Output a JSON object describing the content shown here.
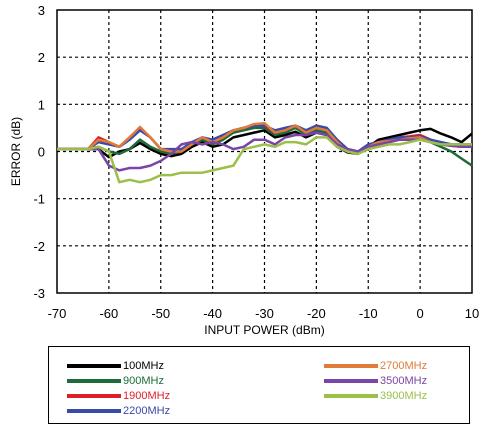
{
  "chart_data": {
    "type": "line",
    "xlabel": "INPUT POWER (dBm)",
    "ylabel": "ERROR (dB)",
    "xlim": [
      -70,
      10
    ],
    "ylim": [
      -3,
      3
    ],
    "xticks": [
      -70,
      -60,
      -50,
      -40,
      -30,
      -20,
      -10,
      0,
      10
    ],
    "yticks": [
      -3,
      -2,
      -1,
      0,
      1,
      2,
      3
    ],
    "grid": true,
    "legend_position": "bottom",
    "series": [
      {
        "name": "100MHz",
        "color": "#000000",
        "x": [
          -70,
          -64,
          -62,
          -60,
          -58,
          -56,
          -54,
          -52,
          -50,
          -48,
          -46,
          -44,
          -42,
          -40,
          -38,
          -36,
          -34,
          -32,
          -30,
          -28,
          -26,
          -24,
          -22,
          -20,
          -18,
          -16,
          -14,
          -12,
          -10,
          -8,
          -6,
          -4,
          -2,
          0,
          2,
          4,
          6,
          8,
          10
        ],
        "y": [
          0.05,
          0.05,
          0.05,
          -0.12,
          0.0,
          0.05,
          0.18,
          0.05,
          -0.05,
          -0.1,
          -0.05,
          0.1,
          0.2,
          0.1,
          0.15,
          0.3,
          0.35,
          0.4,
          0.45,
          0.3,
          0.35,
          0.42,
          0.3,
          0.4,
          0.35,
          0.1,
          -0.02,
          -0.05,
          0.1,
          0.25,
          0.3,
          0.35,
          0.4,
          0.45,
          0.48,
          0.38,
          0.3,
          0.2,
          0.38
        ]
      },
      {
        "name": "900MHz",
        "color": "#1e6b3a",
        "x": [
          -70,
          -64,
          -62,
          -60,
          -58,
          -56,
          -54,
          -52,
          -50,
          -48,
          -46,
          -44,
          -42,
          -40,
          -38,
          -36,
          -34,
          -32,
          -30,
          -28,
          -26,
          -24,
          -22,
          -20,
          -18,
          -16,
          -14,
          -12,
          -10,
          -8,
          -6,
          -4,
          -2,
          0,
          2,
          4,
          6,
          8,
          10
        ],
        "y": [
          0.05,
          0.05,
          0.1,
          0.0,
          -0.05,
          0.05,
          0.25,
          0.1,
          0.0,
          -0.05,
          0.0,
          0.15,
          0.25,
          0.15,
          0.25,
          0.4,
          0.45,
          0.5,
          0.5,
          0.35,
          0.4,
          0.5,
          0.35,
          0.45,
          0.4,
          0.15,
          0.0,
          -0.05,
          0.1,
          0.15,
          0.2,
          0.25,
          0.3,
          0.3,
          0.2,
          0.1,
          0.0,
          -0.15,
          -0.3
        ]
      },
      {
        "name": "1900MHz",
        "color": "#e01e2a",
        "x": [
          -70,
          -64,
          -62,
          -60,
          -58,
          -56,
          -54,
          -52,
          -50,
          -48,
          -46,
          -44,
          -42,
          -40,
          -38,
          -36,
          -34,
          -32,
          -30,
          -28,
          -26,
          -24,
          -22,
          -20,
          -18,
          -16,
          -14,
          -12,
          -10,
          -8,
          -6,
          -4,
          -2,
          0,
          2,
          4,
          6,
          8,
          10
        ],
        "y": [
          0.05,
          0.05,
          0.3,
          0.2,
          0.1,
          0.3,
          0.5,
          0.3,
          0.05,
          0.0,
          0.0,
          0.15,
          0.3,
          0.2,
          0.3,
          0.45,
          0.5,
          0.55,
          0.55,
          0.4,
          0.45,
          0.55,
          0.4,
          0.55,
          0.45,
          0.2,
          0.0,
          -0.02,
          0.1,
          0.2,
          0.25,
          0.3,
          0.32,
          0.35,
          0.25,
          0.15,
          0.12,
          0.1,
          0.1
        ]
      },
      {
        "name": "2200MHz",
        "color": "#3a4aa8",
        "x": [
          -70,
          -64,
          -62,
          -60,
          -58,
          -56,
          -54,
          -52,
          -50,
          -48,
          -46,
          -44,
          -42,
          -40,
          -38,
          -36,
          -34,
          -32,
          -30,
          -28,
          -26,
          -24,
          -22,
          -20,
          -18,
          -16,
          -14,
          -12,
          -10,
          -8,
          -6,
          -4,
          -2,
          0,
          2,
          4,
          6,
          8,
          10
        ],
        "y": [
          0.05,
          0.05,
          0.2,
          0.15,
          0.1,
          0.25,
          0.45,
          0.3,
          0.05,
          0.05,
          0.05,
          0.2,
          0.3,
          0.25,
          0.35,
          0.45,
          0.5,
          0.55,
          0.55,
          0.45,
          0.5,
          0.55,
          0.45,
          0.55,
          0.5,
          0.25,
          0.05,
          0.0,
          0.15,
          0.2,
          0.25,
          0.3,
          0.3,
          0.32,
          0.25,
          0.2,
          0.15,
          0.15,
          0.15
        ]
      },
      {
        "name": "2700MHz",
        "color": "#e07b3a",
        "x": [
          -70,
          -64,
          -62,
          -60,
          -58,
          -56,
          -54,
          -52,
          -50,
          -48,
          -46,
          -44,
          -42,
          -40,
          -38,
          -36,
          -34,
          -32,
          -30,
          -28,
          -26,
          -24,
          -22,
          -20,
          -18,
          -16,
          -14,
          -12,
          -10,
          -8,
          -6,
          -4,
          -2,
          0,
          2,
          4,
          6,
          8,
          10
        ],
        "y": [
          0.05,
          0.05,
          0.25,
          0.2,
          0.1,
          0.3,
          0.52,
          0.3,
          0.05,
          0.0,
          0.0,
          0.15,
          0.3,
          0.2,
          0.3,
          0.45,
          0.5,
          0.58,
          0.6,
          0.4,
          0.45,
          0.55,
          0.4,
          0.5,
          0.45,
          0.2,
          0.0,
          -0.02,
          0.1,
          0.2,
          0.22,
          0.25,
          0.28,
          0.3,
          0.2,
          0.15,
          0.12,
          0.1,
          0.1
        ]
      },
      {
        "name": "3500MHz",
        "color": "#7a45a6",
        "x": [
          -70,
          -64,
          -62,
          -60,
          -58,
          -56,
          -54,
          -52,
          -50,
          -48,
          -46,
          -44,
          -42,
          -40,
          -38,
          -36,
          -34,
          -32,
          -30,
          -28,
          -26,
          -24,
          -22,
          -20,
          -18,
          -16,
          -14,
          -12,
          -10,
          -8,
          -6,
          -4,
          -2,
          0,
          2,
          4,
          6,
          8,
          10
        ],
        "y": [
          0.05,
          0.05,
          0.05,
          -0.3,
          -0.4,
          -0.35,
          -0.35,
          -0.3,
          -0.2,
          -0.05,
          0.15,
          0.2,
          0.15,
          0.2,
          0.15,
          0.05,
          0.1,
          0.25,
          0.25,
          0.15,
          0.3,
          0.35,
          0.35,
          0.4,
          0.35,
          0.15,
          0.05,
          0.0,
          0.1,
          0.15,
          0.2,
          0.25,
          0.25,
          0.25,
          0.2,
          0.15,
          0.12,
          0.1,
          0.1
        ]
      },
      {
        "name": "3900MHz",
        "color": "#9ac04a",
        "x": [
          -70,
          -64,
          -62,
          -60,
          -58,
          -56,
          -54,
          -52,
          -50,
          -48,
          -46,
          -44,
          -42,
          -40,
          -38,
          -36,
          -34,
          -32,
          -30,
          -28,
          -26,
          -24,
          -22,
          -20,
          -18,
          -16,
          -14,
          -12,
          -10,
          -8,
          -6,
          -4,
          -2,
          0,
          2,
          4,
          6,
          8,
          10
        ],
        "y": [
          0.05,
          0.05,
          0.1,
          0.0,
          -0.65,
          -0.6,
          -0.65,
          -0.6,
          -0.5,
          -0.5,
          -0.45,
          -0.45,
          -0.45,
          -0.4,
          -0.35,
          -0.3,
          0.05,
          0.1,
          0.15,
          0.1,
          0.2,
          0.2,
          0.15,
          0.3,
          0.3,
          0.1,
          0.0,
          -0.05,
          0.05,
          0.1,
          0.15,
          0.15,
          0.2,
          0.25,
          0.2,
          0.15,
          0.15,
          0.15,
          0.15
        ]
      }
    ]
  }
}
